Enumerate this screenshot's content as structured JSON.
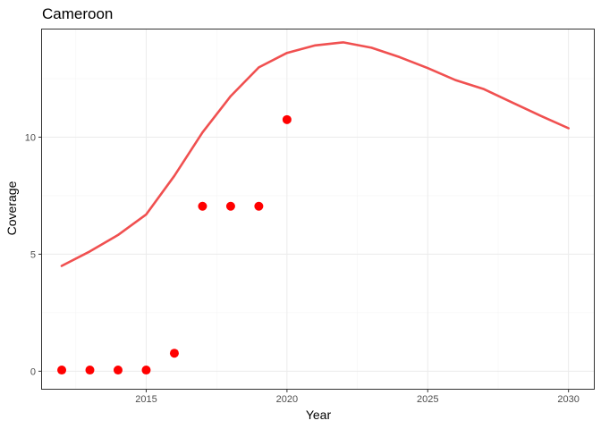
{
  "chart_data": {
    "type": "line",
    "title": "Cameroon",
    "xlabel": "Year",
    "ylabel": "Coverage",
    "xlim": [
      2011.3,
      2030.9
    ],
    "ylim": [
      -0.75,
      14.6
    ],
    "x_ticks": [
      2015,
      2020,
      2025,
      2030
    ],
    "y_ticks": [
      0,
      5,
      10
    ],
    "grid": true,
    "series": [
      {
        "type": "line",
        "color": "#f05050",
        "x": [
          2012,
          2013,
          2014,
          2015,
          2016,
          2017,
          2018,
          2019,
          2020,
          2021,
          2022,
          2023,
          2024,
          2025,
          2026,
          2027,
          2028,
          2029,
          2030
        ],
        "y": [
          4.5,
          5.12,
          5.82,
          6.7,
          8.35,
          10.2,
          11.75,
          12.98,
          13.6,
          13.92,
          14.05,
          13.82,
          13.42,
          12.95,
          12.43,
          12.05,
          11.48,
          10.92,
          10.38
        ]
      },
      {
        "type": "scatter",
        "color": "#ff0000",
        "x": [
          2012,
          2013,
          2014,
          2015,
          2016,
          2017,
          2018,
          2019,
          2020
        ],
        "y": [
          0.05,
          0.05,
          0.05,
          0.05,
          0.77,
          7.05,
          7.05,
          7.05,
          10.75
        ]
      }
    ]
  }
}
